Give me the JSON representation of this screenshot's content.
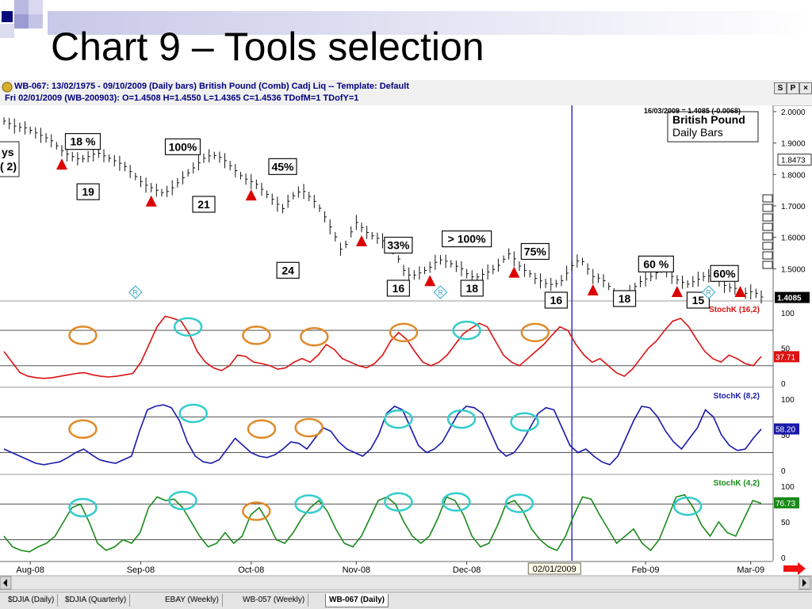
{
  "slide": {
    "title": "Chart 9 – Tools selection"
  },
  "header": {
    "line1": "WB-067:  13/02/1975 - 09/10/2009  (Daily bars)   British Pound (Comb) Cadj Liq   --  Template: Default",
    "line2": "Fri    02/01/2009 (WB-200903):  O=1.4508  H=1.4550  L=1.4365  C=1.4536  TDofM=1  TDofY=1",
    "btn_s": "S",
    "btn_p": "P",
    "btn_close": "×"
  },
  "chart_data": [
    {
      "type": "line",
      "name_label": "British Pound Daily Bars",
      "title_line1": "British Pound",
      "title_line2": "Daily Bars",
      "cursor_readout": "16/03/2009 = 1.4085 (-0.0068)",
      "left_cut_labels": [
        "ys",
        "( 2)"
      ],
      "ylim": [
        1.4,
        2.02
      ],
      "y_ticks": [
        "2.0000",
        "1.9000",
        "1.8000",
        "1.7000",
        "1.6000",
        "1.5000"
      ],
      "y_tick_values": [
        2.0,
        1.9,
        1.8,
        1.7,
        1.6,
        1.5
      ],
      "last_value_box": "1.8473",
      "last_value_box_y": 1.8473,
      "current_value_box": "1.4085",
      "current_value_box_y": 1.4085,
      "price": [
        1.97,
        1.96,
        1.95,
        1.95,
        1.94,
        1.93,
        1.92,
        1.91,
        1.89,
        1.87,
        1.86,
        1.85,
        1.85,
        1.86,
        1.87,
        1.86,
        1.85,
        1.84,
        1.83,
        1.81,
        1.79,
        1.77,
        1.76,
        1.75,
        1.74,
        1.75,
        1.77,
        1.79,
        1.81,
        1.83,
        1.85,
        1.86,
        1.86,
        1.85,
        1.83,
        1.81,
        1.79,
        1.78,
        1.77,
        1.75,
        1.73,
        1.71,
        1.69,
        1.72,
        1.74,
        1.75,
        1.73,
        1.71,
        1.68,
        1.64,
        1.6,
        1.55,
        1.6,
        1.65,
        1.63,
        1.61,
        1.6,
        1.59,
        1.58,
        1.56,
        1.5,
        1.48,
        1.48,
        1.49,
        1.5,
        1.52,
        1.53,
        1.52,
        1.51,
        1.5,
        1.48,
        1.47,
        1.48,
        1.49,
        1.5,
        1.52,
        1.55,
        1.53,
        1.5,
        1.49,
        1.47,
        1.46,
        1.45,
        1.45,
        1.46,
        1.49,
        1.52,
        1.53,
        1.5,
        1.47,
        1.47,
        1.45,
        1.42,
        1.4,
        1.42,
        1.44,
        1.46,
        1.47,
        1.48,
        1.5,
        1.49,
        1.47,
        1.46,
        1.45,
        1.46,
        1.47,
        1.48,
        1.47,
        1.46,
        1.44,
        1.44,
        1.43,
        1.42,
        1.43,
        1.41
      ],
      "boxes": [
        {
          "text": "18 %",
          "i": 15,
          "v": 1.905
        },
        {
          "text": "19",
          "i": 16,
          "v": 1.745
        },
        {
          "text": "100%",
          "i": 34,
          "v": 1.888
        },
        {
          "text": "21",
          "i": 38,
          "v": 1.705
        },
        {
          "text": "45%",
          "i": 53,
          "v": 1.825
        },
        {
          "text": "24",
          "i": 54,
          "v": 1.495
        },
        {
          "text": "33%",
          "i": 75,
          "v": 1.575
        },
        {
          "text": "16",
          "i": 75,
          "v": 1.438
        },
        {
          "text": "> 100%",
          "i": 88,
          "v": 1.595
        },
        {
          "text": "18",
          "i": 89,
          "v": 1.438
        },
        {
          "text": "75%",
          "i": 101,
          "v": 1.555
        },
        {
          "text": "16",
          "i": 105,
          "v": 1.4
        },
        {
          "text": "60 %",
          "i": 124,
          "v": 1.515
        },
        {
          "text": "18",
          "i": 118,
          "v": 1.405
        },
        {
          "text": "60%",
          "i": 137,
          "v": 1.485
        },
        {
          "text": "15",
          "i": 132,
          "v": 1.4
        }
      ],
      "triangles": [
        11,
        28,
        47,
        68,
        81,
        97,
        112,
        128,
        140
      ],
      "diamond_markers": [
        {
          "text": "R",
          "i": 25
        },
        {
          "text": "R",
          "i": 83
        },
        {
          "text": "R",
          "i": 134
        }
      ]
    },
    {
      "type": "line",
      "label": "StochK (16,2)",
      "color": "#dd1111",
      "ylim": [
        0,
        110
      ],
      "y_ticks": [
        "100",
        "50",
        "0"
      ],
      "y_tick_values": [
        100,
        50,
        0
      ],
      "hlines": [
        75,
        25
      ],
      "last_value": "37.71",
      "values": [
        45,
        30,
        15,
        10,
        8,
        7,
        8,
        10,
        12,
        14,
        15,
        12,
        10,
        9,
        10,
        12,
        14,
        30,
        55,
        80,
        95,
        92,
        88,
        70,
        45,
        30,
        22,
        18,
        25,
        40,
        38,
        30,
        28,
        25,
        20,
        22,
        30,
        35,
        30,
        40,
        55,
        48,
        35,
        30,
        25,
        22,
        28,
        40,
        60,
        72,
        62,
        45,
        30,
        25,
        30,
        40,
        55,
        70,
        78,
        85,
        80,
        60,
        40,
        30,
        25,
        35,
        45,
        55,
        68,
        80,
        75,
        55,
        40,
        30,
        35,
        25,
        15,
        10,
        20,
        35,
        50,
        60,
        75,
        88,
        92,
        80,
        62,
        45,
        35,
        30,
        40,
        35,
        28,
        25,
        38
      ],
      "circles": [
        {
          "i": 15,
          "v": 68,
          "color": "#e08a2a"
        },
        {
          "i": 35,
          "v": 80,
          "color": "#33cccc"
        },
        {
          "i": 48,
          "v": 68,
          "color": "#e08a2a"
        },
        {
          "i": 59,
          "v": 66,
          "color": "#e08a2a"
        },
        {
          "i": 76,
          "v": 72,
          "color": "#e08a2a"
        },
        {
          "i": 88,
          "v": 75,
          "color": "#33cccc"
        },
        {
          "i": 101,
          "v": 72,
          "color": "#e08a2a"
        }
      ]
    },
    {
      "type": "line",
      "label": "StochK (8,2)",
      "color": "#1a1aaa",
      "ylim": [
        0,
        110
      ],
      "y_ticks": [
        "100",
        "50",
        "0"
      ],
      "y_tick_values": [
        100,
        50,
        0
      ],
      "hlines": [
        75,
        25
      ],
      "last_value": "58.20",
      "values": [
        30,
        25,
        20,
        15,
        10,
        8,
        10,
        12,
        18,
        25,
        30,
        22,
        15,
        12,
        10,
        15,
        20,
        55,
        85,
        90,
        92,
        88,
        70,
        40,
        20,
        12,
        10,
        15,
        30,
        45,
        35,
        25,
        20,
        18,
        22,
        30,
        40,
        38,
        30,
        45,
        60,
        55,
        40,
        30,
        25,
        20,
        30,
        50,
        80,
        90,
        85,
        60,
        35,
        25,
        30,
        40,
        60,
        80,
        90,
        88,
        80,
        55,
        30,
        20,
        25,
        40,
        60,
        80,
        88,
        85,
        60,
        35,
        25,
        30,
        20,
        12,
        8,
        20,
        45,
        70,
        90,
        88,
        75,
        55,
        40,
        30,
        45,
        60,
        85,
        75,
        50,
        35,
        28,
        30,
        45,
        58
      ],
      "circles": [
        {
          "i": 15,
          "v": 58,
          "color": "#e08a2a"
        },
        {
          "i": 36,
          "v": 80,
          "color": "#33cccc"
        },
        {
          "i": 49,
          "v": 58,
          "color": "#e08a2a"
        },
        {
          "i": 58,
          "v": 60,
          "color": "#e08a2a"
        },
        {
          "i": 75,
          "v": 72,
          "color": "#33cccc"
        },
        {
          "i": 87,
          "v": 72,
          "color": "#33cccc"
        },
        {
          "i": 99,
          "v": 68,
          "color": "#33cccc"
        }
      ]
    },
    {
      "type": "line",
      "label": "StochK (4,2)",
      "color": "#1a8a1a",
      "ylim": [
        0,
        110
      ],
      "y_ticks": [
        "100",
        "50",
        "0"
      ],
      "y_tick_values": [
        100,
        50,
        0
      ],
      "hlines": [
        75,
        25
      ],
      "last_value": "76.73",
      "values": [
        30,
        15,
        10,
        8,
        15,
        20,
        30,
        50,
        70,
        75,
        50,
        20,
        10,
        15,
        25,
        20,
        35,
        70,
        85,
        80,
        82,
        70,
        50,
        30,
        15,
        20,
        35,
        20,
        30,
        60,
        70,
        50,
        25,
        20,
        35,
        55,
        70,
        80,
        65,
        40,
        20,
        15,
        30,
        55,
        80,
        85,
        75,
        50,
        30,
        20,
        30,
        55,
        85,
        80,
        60,
        30,
        15,
        20,
        45,
        75,
        80,
        65,
        40,
        25,
        15,
        10,
        30,
        60,
        85,
        82,
        60,
        40,
        20,
        30,
        40,
        20,
        10,
        25,
        55,
        85,
        88,
        70,
        45,
        30,
        50,
        35,
        30,
        55,
        80,
        76
      ],
      "circles": [
        {
          "i": 15,
          "v": 70,
          "color": "#33cccc"
        },
        {
          "i": 34,
          "v": 80,
          "color": "#33cccc"
        },
        {
          "i": 48,
          "v": 65,
          "color": "#e08a2a"
        },
        {
          "i": 58,
          "v": 75,
          "color": "#33cccc"
        },
        {
          "i": 75,
          "v": 78,
          "color": "#33cccc"
        },
        {
          "i": 86,
          "v": 78,
          "color": "#33cccc"
        },
        {
          "i": 98,
          "v": 76,
          "color": "#33cccc"
        },
        {
          "i": 130,
          "v": 72,
          "color": "#33cccc"
        }
      ]
    }
  ],
  "x_axis": {
    "labels": [
      "Aug-08",
      "Sep-08",
      "Oct-08",
      "Nov-08",
      "Dec-08",
      "Feb-09",
      "Mar-09"
    ],
    "label_index": [
      5,
      26,
      47,
      67,
      88,
      122,
      142
    ],
    "cursor_date": "02/01/2009",
    "cursor_index": 108
  },
  "tabs": [
    "$DJIA (Daily)",
    "$DJIA (Quarterly)",
    "EBAY (Weekly)",
    "WB-057 (Weekly)",
    "WB-067 (Daily)"
  ],
  "active_tab": 4,
  "colors": {
    "accent_blue": "#000080",
    "cursor_line": "#3333cc",
    "triangle": "#dd0000",
    "arrow": "#ee1111"
  }
}
